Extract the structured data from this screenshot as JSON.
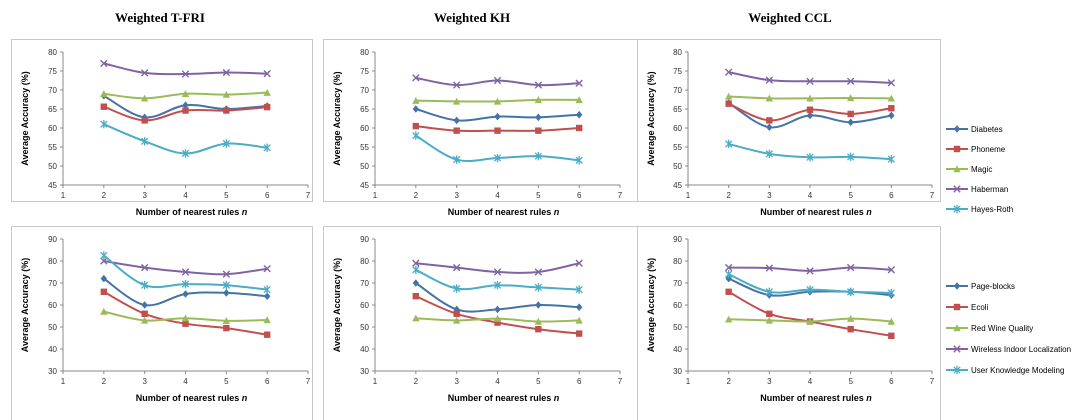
{
  "column_titles": [
    "Weighted T-FRI",
    "Weighted KH",
    "Weighted CCL"
  ],
  "colors": [
    "#4572A7",
    "#C0504D",
    "#9BBB59",
    "#8064A2",
    "#4BACC6"
  ],
  "chart_data": [
    {
      "type": "line",
      "row": 0,
      "col": 0,
      "title": "",
      "xlabel": "Number of nearest rules n",
      "ylabel": "Average Accuracy (%)",
      "xlim": [
        1,
        7
      ],
      "ylim": [
        45,
        80
      ],
      "yticks": [
        45,
        50,
        55,
        60,
        65,
        70,
        75,
        80
      ],
      "xticks": [
        1,
        2,
        3,
        4,
        5,
        6,
        7
      ],
      "grid": false,
      "legend": "none",
      "x": [
        2,
        3,
        4,
        5,
        6
      ],
      "series": [
        {
          "name": "Diabetes",
          "values": [
            68.5,
            62.8,
            66.0,
            65.0,
            65.8
          ]
        },
        {
          "name": "Phoneme",
          "values": [
            65.6,
            62.0,
            64.6,
            64.6,
            65.5
          ]
        },
        {
          "name": "Magic",
          "values": [
            69.0,
            67.8,
            69.0,
            68.8,
            69.3
          ]
        },
        {
          "name": "Haberman",
          "values": [
            77.0,
            74.5,
            74.2,
            74.6,
            74.3
          ]
        },
        {
          "name": "Hayes-Roth",
          "values": [
            61.0,
            56.5,
            53.3,
            55.9,
            54.8
          ]
        }
      ]
    },
    {
      "type": "line",
      "row": 0,
      "col": 1,
      "title": "",
      "xlabel": "Number of nearest rules n",
      "ylabel": "Average Accuracy (%)",
      "xlim": [
        1,
        7
      ],
      "ylim": [
        45,
        80
      ],
      "yticks": [
        45,
        50,
        55,
        60,
        65,
        70,
        75,
        80
      ],
      "xticks": [
        1,
        2,
        3,
        4,
        5,
        6,
        7
      ],
      "grid": false,
      "legend": "none",
      "x": [
        2,
        3,
        4,
        5,
        6
      ],
      "series": [
        {
          "name": "Diabetes",
          "values": [
            65.0,
            62.0,
            63.0,
            62.8,
            63.5
          ]
        },
        {
          "name": "Phoneme",
          "values": [
            60.5,
            59.3,
            59.3,
            59.3,
            60.0
          ]
        },
        {
          "name": "Magic",
          "values": [
            67.2,
            67.0,
            67.0,
            67.4,
            67.4
          ]
        },
        {
          "name": "Haberman",
          "values": [
            73.2,
            71.3,
            72.5,
            71.3,
            71.8
          ]
        },
        {
          "name": "Hayes-Roth",
          "values": [
            58.0,
            51.7,
            52.1,
            52.6,
            51.5
          ]
        }
      ]
    },
    {
      "type": "line",
      "row": 0,
      "col": 2,
      "title": "",
      "xlabel": "Number of nearest rules n",
      "ylabel": "Average Accuracy (%)",
      "xlim": [
        1,
        7
      ],
      "ylim": [
        45,
        80
      ],
      "yticks": [
        45,
        50,
        55,
        60,
        65,
        70,
        75,
        80
      ],
      "xticks": [
        1,
        2,
        3,
        4,
        5,
        6,
        7
      ],
      "grid": false,
      "legend": "right",
      "x": [
        2,
        3,
        4,
        5,
        6
      ],
      "series": [
        {
          "name": "Diabetes",
          "values": [
            66.6,
            60.2,
            63.3,
            61.5,
            63.3
          ]
        },
        {
          "name": "Phoneme",
          "values": [
            66.4,
            62.0,
            64.8,
            63.7,
            65.2
          ]
        },
        {
          "name": "Magic",
          "values": [
            68.3,
            67.8,
            67.8,
            67.9,
            67.8
          ]
        },
        {
          "name": "Haberman",
          "values": [
            74.7,
            72.6,
            72.3,
            72.3,
            71.9
          ]
        },
        {
          "name": "Hayes-Roth",
          "values": [
            55.8,
            53.2,
            52.3,
            52.4,
            51.8
          ]
        }
      ]
    },
    {
      "type": "line",
      "row": 1,
      "col": 0,
      "title": "",
      "xlabel": "Number of nearest rules n",
      "ylabel": "Average Accuracy (%)",
      "xlim": [
        1,
        7
      ],
      "ylim": [
        30,
        90
      ],
      "yticks": [
        30,
        40,
        50,
        60,
        70,
        80,
        90
      ],
      "xticks": [
        1,
        2,
        3,
        4,
        5,
        6,
        7
      ],
      "grid": false,
      "legend": "none",
      "x": [
        2,
        3,
        4,
        5,
        6
      ],
      "series": [
        {
          "name": "Page-blocks",
          "values": [
            72.0,
            60.0,
            65.0,
            65.5,
            64.0
          ]
        },
        {
          "name": "Ecoli",
          "values": [
            66.0,
            56.0,
            51.5,
            49.5,
            46.5
          ]
        },
        {
          "name": "Red Wine Quality",
          "values": [
            57.0,
            53.0,
            54.0,
            52.8,
            53.2
          ]
        },
        {
          "name": "Wireless Indoor Localization",
          "values": [
            80.0,
            77.0,
            75.0,
            74.0,
            76.5
          ]
        },
        {
          "name": "User Knowledge Modeling",
          "values": [
            82.5,
            69.0,
            69.5,
            69.0,
            67.0
          ]
        }
      ]
    },
    {
      "type": "line",
      "row": 1,
      "col": 1,
      "title": "",
      "xlabel": "Number of nearest rules n",
      "ylabel": "Average Accuracy (%)",
      "xlim": [
        1,
        7
      ],
      "ylim": [
        30,
        90
      ],
      "yticks": [
        30,
        40,
        50,
        60,
        70,
        80,
        90
      ],
      "xticks": [
        1,
        2,
        3,
        4,
        5,
        6,
        7
      ],
      "grid": false,
      "legend": "none",
      "x": [
        2,
        3,
        4,
        5,
        6
      ],
      "series": [
        {
          "name": "Page-blocks",
          "values": [
            70.0,
            58.0,
            58.0,
            60.0,
            59.0
          ]
        },
        {
          "name": "Ecoli",
          "values": [
            64.0,
            56.0,
            52.0,
            49.0,
            47.0
          ]
        },
        {
          "name": "Red Wine Quality",
          "values": [
            54.0,
            53.0,
            53.8,
            52.5,
            53.0
          ]
        },
        {
          "name": "Wireless Indoor Localization",
          "values": [
            79.0,
            77.0,
            75.0,
            75.0,
            79.0
          ]
        },
        {
          "name": "User Knowledge Modeling",
          "values": [
            76.0,
            67.5,
            69.0,
            68.0,
            67.0
          ]
        }
      ]
    },
    {
      "type": "line",
      "row": 1,
      "col": 2,
      "title": "",
      "xlabel": "Number of nearest rules n",
      "ylabel": "Average Accuracy (%)",
      "xlim": [
        1,
        7
      ],
      "ylim": [
        30,
        90
      ],
      "yticks": [
        30,
        40,
        50,
        60,
        70,
        80,
        90
      ],
      "xticks": [
        1,
        2,
        3,
        4,
        5,
        6,
        7
      ],
      "grid": false,
      "legend": "right",
      "x": [
        2,
        3,
        4,
        5,
        6
      ],
      "series": [
        {
          "name": "Page-blocks",
          "values": [
            72.0,
            64.5,
            66.0,
            66.0,
            64.5
          ]
        },
        {
          "name": "Ecoli",
          "values": [
            66.0,
            56.0,
            52.5,
            49.0,
            46.0
          ]
        },
        {
          "name": "Red Wine Quality",
          "values": [
            53.5,
            53.0,
            52.5,
            53.8,
            52.5
          ]
        },
        {
          "name": "Wireless Indoor Localization",
          "values": [
            77.0,
            76.8,
            75.5,
            77.0,
            76.0
          ]
        },
        {
          "name": "User Knowledge Modeling",
          "values": [
            74.0,
            66.0,
            67.0,
            66.0,
            65.5
          ]
        }
      ]
    }
  ]
}
